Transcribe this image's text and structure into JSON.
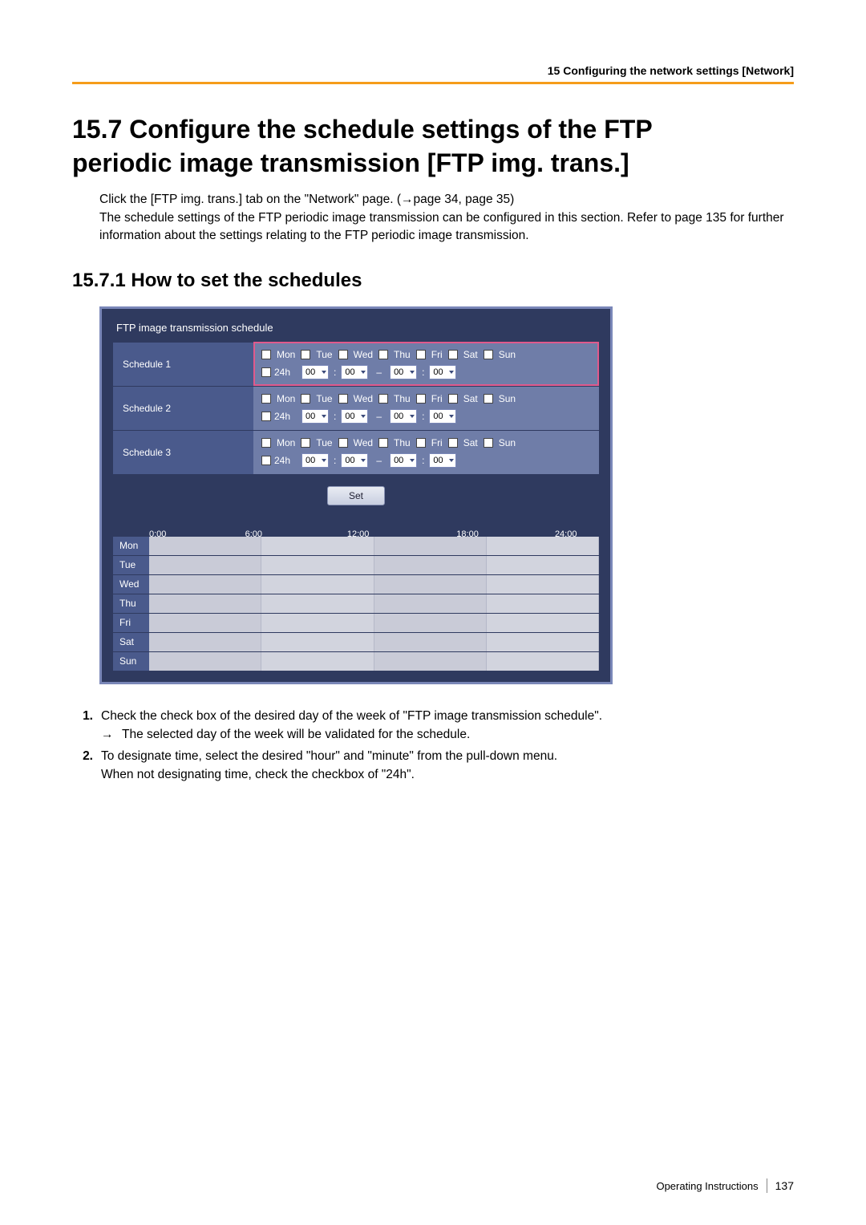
{
  "header": {
    "chapter": "15 Configuring the network settings [Network]"
  },
  "section": {
    "number": "15.7",
    "title_line1": "15.7  Configure the schedule settings of the FTP",
    "title_line2": "periodic image transmission [FTP img. trans.]",
    "intro1": "Click the [FTP img. trans.] tab on the \"Network\" page. (→page 34, page 35)",
    "intro2": "The schedule settings of the FTP periodic image transmission can be configured in this section. Refer to page 135 for further information about the settings relating to the FTP periodic image transmission."
  },
  "subsection": {
    "title": "15.7.1  How to set the schedules"
  },
  "panel": {
    "title": "FTP image transmission schedule",
    "days": [
      "Mon",
      "Tue",
      "Wed",
      "Thu",
      "Fri",
      "Sat",
      "Sun"
    ],
    "label_24h": "24h",
    "time_opts": {
      "h1": "00",
      "m1": "00",
      "h2": "00",
      "m2": "00"
    },
    "schedules": [
      {
        "label": "Schedule 1",
        "highlight": true
      },
      {
        "label": "Schedule 2",
        "highlight": false
      },
      {
        "label": "Schedule 3",
        "highlight": false
      }
    ],
    "set_button": "Set",
    "timeline_labels": [
      "0:00",
      "6:00",
      "12:00",
      "18:00",
      "24:00"
    ],
    "week_days": [
      "Mon",
      "Tue",
      "Wed",
      "Thu",
      "Fri",
      "Sat",
      "Sun"
    ]
  },
  "steps": {
    "s1": "Check the check box of the desired day of the week of \"FTP image transmission schedule\".",
    "s1_sub": "The selected day of the week will be validated for the schedule.",
    "s2a": "To designate time, select the desired \"hour\" and \"minute\" from the pull-down menu.",
    "s2b": "When not designating time, check the checkbox of \"24h\"."
  },
  "footer": {
    "doc": "Operating Instructions",
    "page": "137"
  },
  "colors": {
    "orange": "#f59c1a",
    "panel_border": "#7a87b8",
    "panel_bg": "#2f3a5f",
    "row_left": "#4a5a8c",
    "row_right": "#6f7da8",
    "highlight": "#e05a8c"
  }
}
